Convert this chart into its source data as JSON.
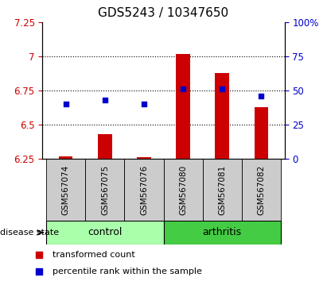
{
  "title": "GDS5243 / 10347650",
  "samples": [
    "GSM567074",
    "GSM567075",
    "GSM567076",
    "GSM567080",
    "GSM567081",
    "GSM567082"
  ],
  "groups": [
    "control",
    "control",
    "control",
    "arthritis",
    "arthritis",
    "arthritis"
  ],
  "red_values": [
    6.27,
    6.43,
    6.26,
    7.02,
    6.88,
    6.63
  ],
  "blue_values": [
    40,
    43,
    40,
    51,
    51,
    46
  ],
  "ylim_left": [
    6.25,
    7.25
  ],
  "ylim_right": [
    0,
    100
  ],
  "yticks_left": [
    6.25,
    6.5,
    6.75,
    7.0,
    7.25
  ],
  "yticks_right": [
    0,
    25,
    50,
    75,
    100
  ],
  "ytick_labels_left": [
    "6.25",
    "6.5",
    "6.75",
    "7",
    "7.25"
  ],
  "ytick_labels_right": [
    "0",
    "25",
    "50",
    "75",
    "100%"
  ],
  "hlines": [
    6.5,
    6.75,
    7.0
  ],
  "bar_color": "#cc0000",
  "dot_color": "#0000cc",
  "bar_width": 0.35,
  "baseline": 6.25,
  "control_color": "#aaffaa",
  "arthritis_color": "#44cc44",
  "label_color_left": "#cc0000",
  "label_color_right": "#0000cc",
  "group_label": "disease state",
  "legend_red": "transformed count",
  "legend_blue": "percentile rank within the sample",
  "sample_box_color": "#cccccc",
  "title_fontsize": 11,
  "tick_fontsize": 8.5,
  "sample_fontsize": 7.5
}
